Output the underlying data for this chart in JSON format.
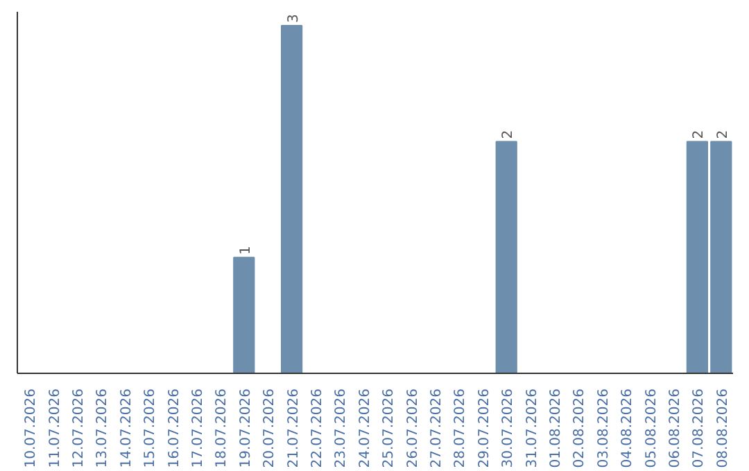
{
  "chart_data": {
    "type": "bar",
    "categories": [
      "10.07.2026",
      "11.07.2026",
      "12.07.2026",
      "13.07.2026",
      "14.07.2026",
      "15.07.2026",
      "16.07.2026",
      "17.07.2026",
      "18.07.2026",
      "19.07.2026",
      "20.07.2026",
      "21.07.2026",
      "22.07.2026",
      "23.07.2026",
      "24.07.2026",
      "25.07.2026",
      "26.07.2026",
      "27.07.2026",
      "28.07.2026",
      "29.07.2026",
      "30.07.2026",
      "31.07.2026",
      "01.08.2026",
      "02.08.2026",
      "03.08.2026",
      "04.08.2026",
      "05.08.2026",
      "06.08.2026",
      "07.08.2026",
      "08.08.2026"
    ],
    "values": [
      0,
      0,
      0,
      0,
      0,
      0,
      0,
      0,
      0,
      1,
      0,
      3,
      0,
      0,
      0,
      0,
      0,
      0,
      0,
      0,
      2,
      0,
      0,
      0,
      0,
      0,
      0,
      0,
      2,
      2
    ],
    "value_labels": [
      null,
      null,
      null,
      null,
      null,
      null,
      null,
      null,
      null,
      "1",
      null,
      "3",
      null,
      null,
      null,
      null,
      null,
      null,
      null,
      null,
      "2",
      null,
      null,
      null,
      null,
      null,
      null,
      null,
      "2",
      "2"
    ],
    "color": "#6d8fad",
    "tick_labels": "x"
  }
}
